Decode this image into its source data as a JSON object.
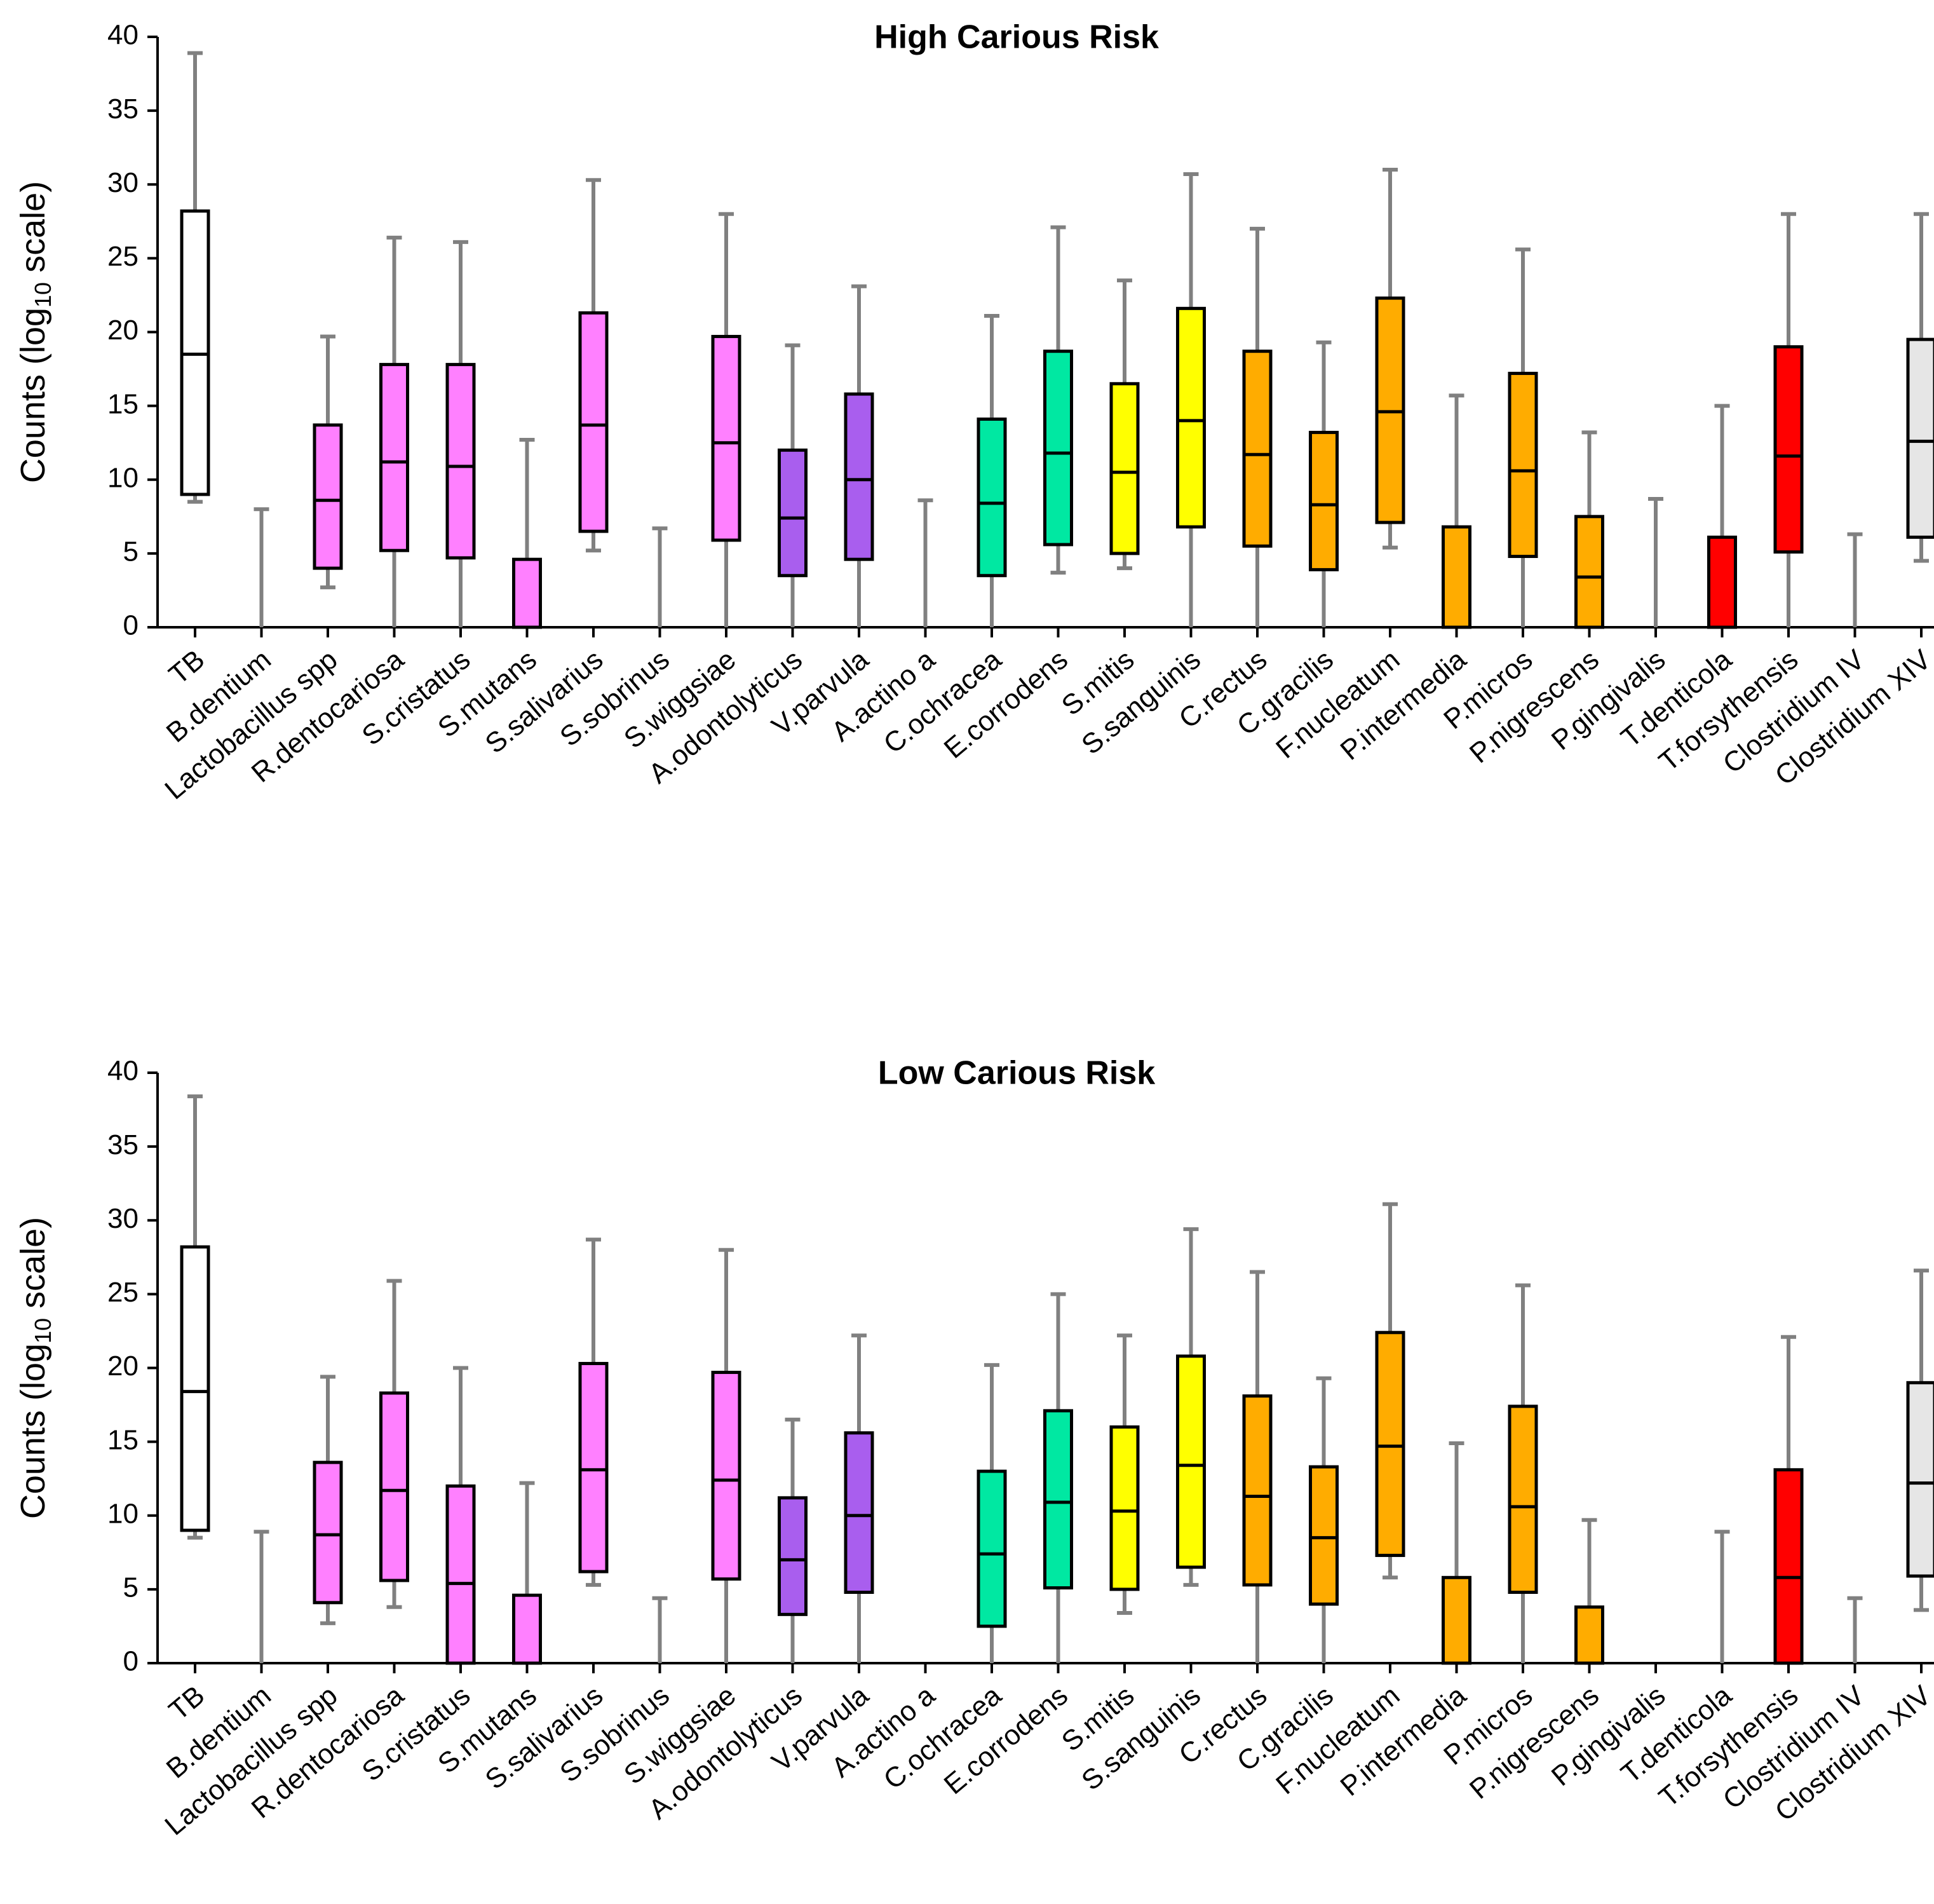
{
  "chart_data": [
    {
      "type": "box",
      "title": "High Carious Risk",
      "ylabel_main": "Counts (log",
      "ylabel_sub": "10",
      "ylabel_end": " scale)",
      "ylim": [
        0,
        40
      ],
      "yticks": [
        "0",
        "5",
        "10",
        "15",
        "20",
        "25",
        "30",
        "35",
        "40"
      ],
      "categories": [
        "TB",
        "B.dentium",
        "Lactobacillus spp",
        "R.dentocariosa",
        "S.cristatus",
        "S.mutans",
        "S.salivarius",
        "S.sobrinus",
        "S.wiggsiae",
        "A.odontolyticus",
        "V.parvula",
        "A.actino a",
        "C.ochracea",
        "E.corrodens",
        "S.mitis",
        "S.sanguinis",
        "C.rectus",
        "C.gracilis",
        "F.nucleatum",
        "P.intermedia",
        "P.micros",
        "P.nigrescens",
        "P.gingivalis",
        "T.denticola",
        "T.forsythensis",
        "Clostridium IV",
        "Clostridium XIV"
      ],
      "colors": [
        "#FFFFFF",
        "#FF80FF",
        "#FF80FF",
        "#FF80FF",
        "#FF80FF",
        "#FF80FF",
        "#FF80FF",
        "#FF80FF",
        "#FF80FF",
        "#A95EEE",
        "#A95EEE",
        "#00E8A2",
        "#00E8A2",
        "#00E8A2",
        "#FFFF00",
        "#FFFF00",
        "#FFAC00",
        "#FFAC00",
        "#FFAC00",
        "#FFAC00",
        "#FFAC00",
        "#FFAC00",
        "#FFAC00",
        "#FF0000",
        "#FF0000",
        "#E6E6E6",
        "#E6E6E6"
      ],
      "boxes": [
        {
          "whisker_low": 8.5,
          "q1": 9.0,
          "median": 18.5,
          "q3": 28.2,
          "whisker_high": 38.9
        },
        {
          "whisker_low": 0,
          "q1": 0,
          "median": 0,
          "q3": 0,
          "whisker_high": 8.0
        },
        {
          "whisker_low": 2.7,
          "q1": 4.0,
          "median": 8.6,
          "q3": 13.7,
          "whisker_high": 19.7
        },
        {
          "whisker_low": 0,
          "q1": 5.2,
          "median": 11.2,
          "q3": 17.8,
          "whisker_high": 26.4
        },
        {
          "whisker_low": 0,
          "q1": 4.7,
          "median": 10.9,
          "q3": 17.8,
          "whisker_high": 26.1
        },
        {
          "whisker_low": 0,
          "q1": 0,
          "median": 0,
          "q3": 4.6,
          "whisker_high": 12.7
        },
        {
          "whisker_low": 5.2,
          "q1": 6.5,
          "median": 13.7,
          "q3": 21.3,
          "whisker_high": 30.3
        },
        {
          "whisker_low": 0,
          "q1": 0,
          "median": 0,
          "q3": 0,
          "whisker_high": 6.7
        },
        {
          "whisker_low": 0,
          "q1": 5.9,
          "median": 12.5,
          "q3": 19.7,
          "whisker_high": 28.0
        },
        {
          "whisker_low": 0,
          "q1": 3.5,
          "median": 7.4,
          "q3": 12.0,
          "whisker_high": 19.1
        },
        {
          "whisker_low": 0,
          "q1": 4.6,
          "median": 10.0,
          "q3": 15.8,
          "whisker_high": 23.1
        },
        {
          "whisker_low": 0,
          "q1": 0,
          "median": 0,
          "q3": 0,
          "whisker_high": 8.6
        },
        {
          "whisker_low": 0,
          "q1": 3.5,
          "median": 8.4,
          "q3": 14.1,
          "whisker_high": 21.1
        },
        {
          "whisker_low": 3.7,
          "q1": 5.6,
          "median": 11.8,
          "q3": 18.7,
          "whisker_high": 27.1
        },
        {
          "whisker_low": 4.0,
          "q1": 5.0,
          "median": 10.5,
          "q3": 16.5,
          "whisker_high": 23.5
        },
        {
          "whisker_low": 0,
          "q1": 6.8,
          "median": 14.0,
          "q3": 21.6,
          "whisker_high": 30.7
        },
        {
          "whisker_low": 0,
          "q1": 5.5,
          "median": 11.7,
          "q3": 18.7,
          "whisker_high": 27.0
        },
        {
          "whisker_low": 0,
          "q1": 3.9,
          "median": 8.3,
          "q3": 13.2,
          "whisker_high": 19.3
        },
        {
          "whisker_low": 5.4,
          "q1": 7.1,
          "median": 14.6,
          "q3": 22.3,
          "whisker_high": 31.0
        },
        {
          "whisker_low": 0,
          "q1": 0,
          "median": 0,
          "q3": 6.8,
          "whisker_high": 15.7
        },
        {
          "whisker_low": 0,
          "q1": 4.8,
          "median": 10.6,
          "q3": 17.2,
          "whisker_high": 25.6
        },
        {
          "whisker_low": 0,
          "q1": 0,
          "median": 3.4,
          "q3": 7.5,
          "whisker_high": 13.2
        },
        {
          "whisker_low": 0,
          "q1": 0,
          "median": 0,
          "q3": 0,
          "whisker_high": 8.7
        },
        {
          "whisker_low": 0,
          "q1": 0,
          "median": 0,
          "q3": 6.1,
          "whisker_high": 15.0
        },
        {
          "whisker_low": 0,
          "q1": 5.1,
          "median": 11.6,
          "q3": 19.0,
          "whisker_high": 28.0
        },
        {
          "whisker_low": 0,
          "q1": 0,
          "median": 0,
          "q3": 0,
          "whisker_high": 6.3
        },
        {
          "whisker_low": 4.5,
          "q1": 6.1,
          "median": 12.6,
          "q3": 19.5,
          "whisker_high": 28.0
        }
      ]
    },
    {
      "type": "box",
      "title": "Low Carious Risk",
      "ylabel_main": "Counts (log",
      "ylabel_sub": "10",
      "ylabel_end": " scale)",
      "ylim": [
        0,
        40
      ],
      "yticks": [
        "0",
        "5",
        "10",
        "15",
        "20",
        "25",
        "30",
        "35",
        "40"
      ],
      "categories": [
        "TB",
        "B.dentium",
        "Lactobacillus spp",
        "R.dentocariosa",
        "S.cristatus",
        "S.mutans",
        "S.salivarius",
        "S.sobrinus",
        "S.wiggsiae",
        "A.odontolyticus",
        "V.parvula",
        "A.actino a",
        "C.ochracea",
        "E.corrodens",
        "S.mitis",
        "S.sanguinis",
        "C.rectus",
        "C.gracilis",
        "F.nucleatum",
        "P.intermedia",
        "P.micros",
        "P.nigrescens",
        "P.gingivalis",
        "T.denticola",
        "T.forsythensis",
        "Clostridium IV",
        "Clostridium XIV"
      ],
      "colors": [
        "#FFFFFF",
        "#FF80FF",
        "#FF80FF",
        "#FF80FF",
        "#FF80FF",
        "#FF80FF",
        "#FF80FF",
        "#FF80FF",
        "#FF80FF",
        "#A95EEE",
        "#A95EEE",
        "#00E8A2",
        "#00E8A2",
        "#00E8A2",
        "#FFFF00",
        "#FFFF00",
        "#FFAC00",
        "#FFAC00",
        "#FFAC00",
        "#FFAC00",
        "#FFAC00",
        "#FFAC00",
        "#FFAC00",
        "#FF0000",
        "#FF0000",
        "#E6E6E6",
        "#E6E6E6"
      ],
      "boxes": [
        {
          "whisker_low": 8.5,
          "q1": 9.0,
          "median": 18.4,
          "q3": 28.2,
          "whisker_high": 38.4
        },
        {
          "whisker_low": 0,
          "q1": 0,
          "median": 0,
          "q3": 0,
          "whisker_high": 8.9
        },
        {
          "whisker_low": 2.7,
          "q1": 4.1,
          "median": 8.7,
          "q3": 13.6,
          "whisker_high": 19.4
        },
        {
          "whisker_low": 3.8,
          "q1": 5.6,
          "median": 11.7,
          "q3": 18.3,
          "whisker_high": 25.9
        },
        {
          "whisker_low": 0,
          "q1": 0,
          "median": 5.4,
          "q3": 12.0,
          "whisker_high": 20.0
        },
        {
          "whisker_low": 0,
          "q1": 0,
          "median": 0,
          "q3": 4.6,
          "whisker_high": 12.2
        },
        {
          "whisker_low": 5.3,
          "q1": 6.2,
          "median": 13.1,
          "q3": 20.3,
          "whisker_high": 28.7
        },
        {
          "whisker_low": 0,
          "q1": 0,
          "median": 0,
          "q3": 0,
          "whisker_high": 4.4
        },
        {
          "whisker_low": 0,
          "q1": 5.7,
          "median": 12.4,
          "q3": 19.7,
          "whisker_high": 28.0
        },
        {
          "whisker_low": 0,
          "q1": 3.3,
          "median": 7.0,
          "q3": 11.2,
          "whisker_high": 16.5
        },
        {
          "whisker_low": 0,
          "q1": 4.8,
          "median": 10.0,
          "q3": 15.6,
          "whisker_high": 22.2
        },
        {
          "whisker_low": 0,
          "q1": 0,
          "median": 0,
          "q3": 0,
          "whisker_high": 0
        },
        {
          "whisker_low": 0,
          "q1": 2.5,
          "median": 7.4,
          "q3": 13.0,
          "whisker_high": 20.2
        },
        {
          "whisker_low": 0,
          "q1": 5.1,
          "median": 10.9,
          "q3": 17.1,
          "whisker_high": 25.0
        },
        {
          "whisker_low": 3.4,
          "q1": 5.0,
          "median": 10.3,
          "q3": 16.0,
          "whisker_high": 22.2
        },
        {
          "whisker_low": 5.3,
          "q1": 6.5,
          "median": 13.4,
          "q3": 20.8,
          "whisker_high": 29.4
        },
        {
          "whisker_low": 0,
          "q1": 5.3,
          "median": 11.3,
          "q3": 18.1,
          "whisker_high": 26.5
        },
        {
          "whisker_low": 0,
          "q1": 4.0,
          "median": 8.5,
          "q3": 13.3,
          "whisker_high": 19.3
        },
        {
          "whisker_low": 5.8,
          "q1": 7.3,
          "median": 14.7,
          "q3": 22.4,
          "whisker_high": 31.1
        },
        {
          "whisker_low": 0,
          "q1": 0,
          "median": 0,
          "q3": 5.8,
          "whisker_high": 14.9
        },
        {
          "whisker_low": 0,
          "q1": 4.8,
          "median": 10.6,
          "q3": 17.4,
          "whisker_high": 25.6
        },
        {
          "whisker_low": 0,
          "q1": 0,
          "median": 0,
          "q3": 3.8,
          "whisker_high": 9.7
        },
        {
          "whisker_low": 0,
          "q1": 0,
          "median": 0,
          "q3": 0,
          "whisker_high": 0
        },
        {
          "whisker_low": 0,
          "q1": 0,
          "median": 0,
          "q3": 0,
          "whisker_high": 8.9
        },
        {
          "whisker_low": 0,
          "q1": 0,
          "median": 5.8,
          "q3": 13.1,
          "whisker_high": 22.1
        },
        {
          "whisker_low": 0,
          "q1": 0,
          "median": 0,
          "q3": 0,
          "whisker_high": 4.4
        },
        {
          "whisker_low": 3.6,
          "q1": 5.9,
          "median": 12.2,
          "q3": 19.0,
          "whisker_high": 26.6
        }
      ]
    }
  ]
}
